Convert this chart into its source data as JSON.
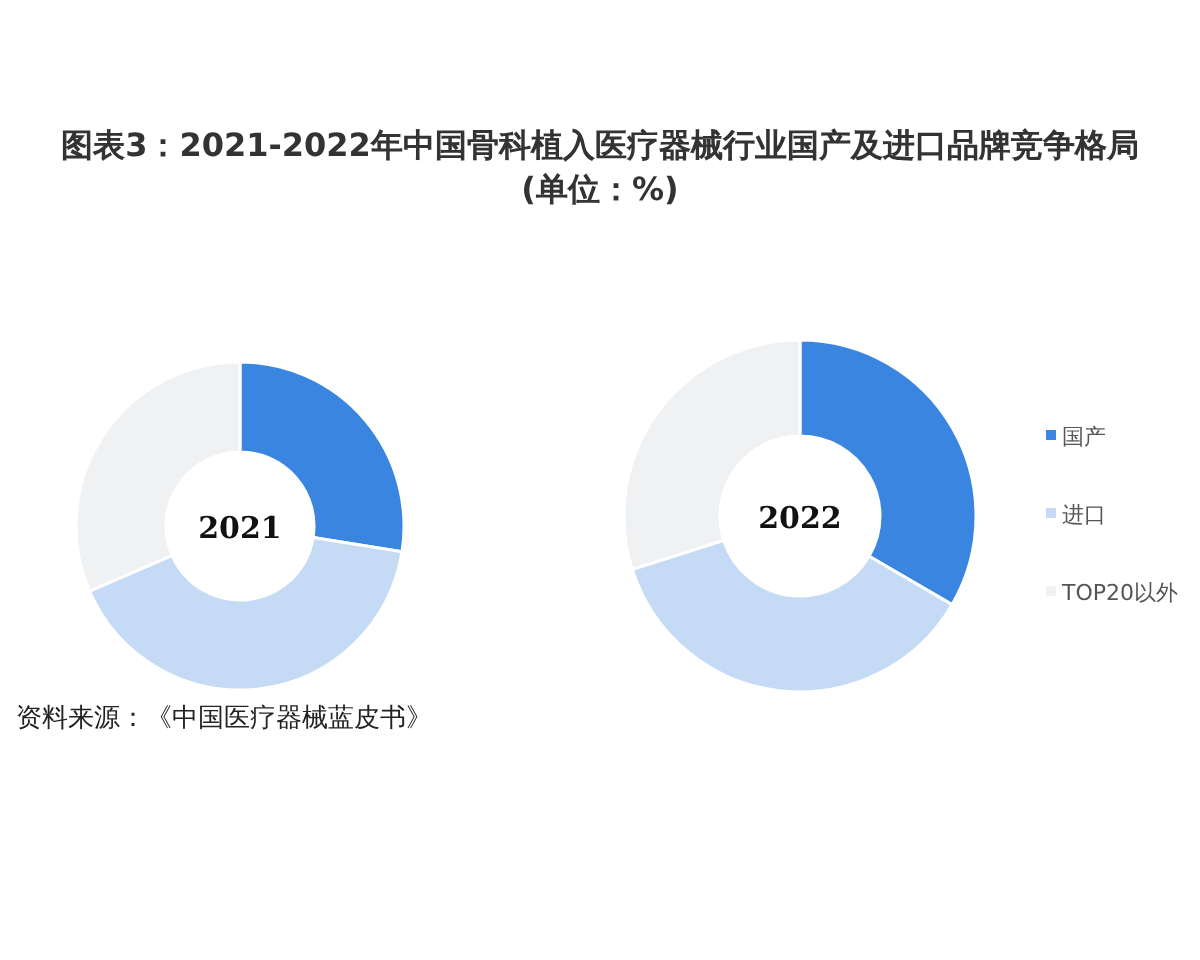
{
  "chart_data": [
    {
      "type": "donut",
      "title": "图表3：2021-2022年中国骨科植入医疗器械行业国产及进口品牌竞争格局(单位：%)",
      "categories": [
        null,
        null,
        null
      ],
      "values": [
        27.5,
        41,
        31.5
      ],
      "colors": [
        "#3a85e0",
        "#c5dbf5",
        "#f0f1f3"
      ],
      "annotations": [
        "2021",
        "资料来源：《中国医疗器械蓝皮书》"
      ],
      "legend": false
    },
    {
      "type": "donut",
      "categories": [
        "国产",
        "进口",
        "TOP20以外"
      ],
      "values": [
        33.4,
        36.7,
        29.9
      ],
      "colors": [
        "#3a85e0",
        "#c5dbf5",
        "#f0f1f3"
      ],
      "annotations": [
        "2022"
      ],
      "legend": "right"
    }
  ]
}
